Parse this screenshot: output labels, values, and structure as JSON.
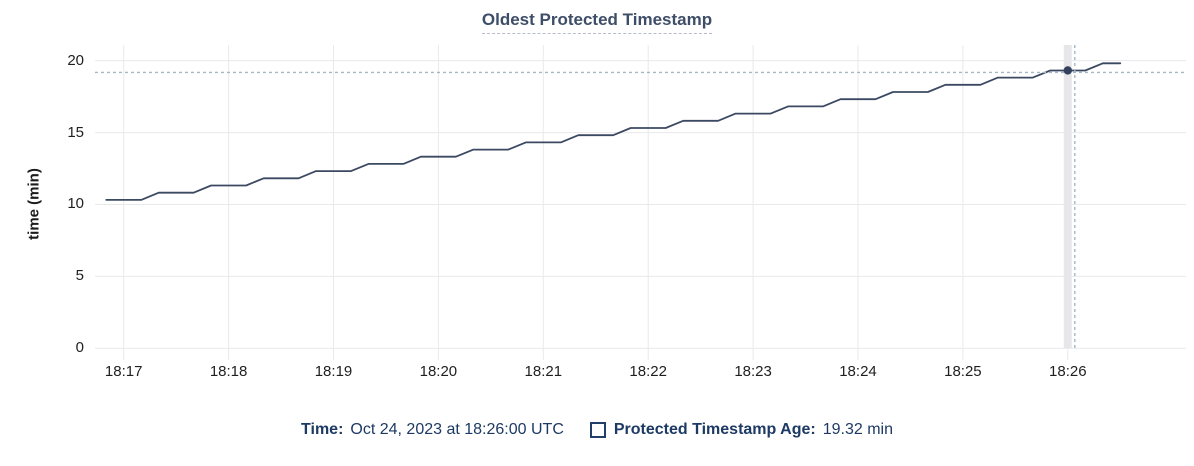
{
  "title": "Oldest Protected Timestamp",
  "legend": {
    "time_label": "Time:",
    "time_value": "Oct 24, 2023 at 18:26:00 UTC",
    "series_label": "Protected Timestamp Age:",
    "series_value": "19.32 min"
  },
  "colors": {
    "line": "#3b4962",
    "dot": "#33415c",
    "grid": "#e9e9eb",
    "highlight_band": "#e7e7e9",
    "crosshair": "#a4b7c4",
    "title_text": "#3e4d68",
    "legend_text": "#1d3a64",
    "tick_text": "#1f1f1f",
    "checkbox_border": "#223e6b"
  },
  "chart_data": {
    "type": "line",
    "title": "Oldest Protected Timestamp",
    "xlabel": "",
    "ylabel": "time (min)",
    "ylim": [
      0,
      20
    ],
    "y_ticks": [
      0,
      5,
      10,
      15,
      20
    ],
    "x_ticks": [
      "18:17",
      "18:18",
      "18:19",
      "18:20",
      "18:21",
      "18:22",
      "18:23",
      "18:24",
      "18:25",
      "18:26"
    ],
    "grid": true,
    "legend_position": "bottom",
    "series": [
      {
        "name": "Protected Timestamp Age",
        "points": [
          {
            "t": "18:16:50",
            "v": 10.32
          },
          {
            "t": "18:17:10",
            "v": 10.32
          },
          {
            "t": "18:17:20",
            "v": 10.82
          },
          {
            "t": "18:17:40",
            "v": 10.82
          },
          {
            "t": "18:17:50",
            "v": 11.32
          },
          {
            "t": "18:18:10",
            "v": 11.32
          },
          {
            "t": "18:18:20",
            "v": 11.82
          },
          {
            "t": "18:18:40",
            "v": 11.82
          },
          {
            "t": "18:18:50",
            "v": 12.32
          },
          {
            "t": "18:19:10",
            "v": 12.32
          },
          {
            "t": "18:19:20",
            "v": 12.82
          },
          {
            "t": "18:19:40",
            "v": 12.82
          },
          {
            "t": "18:19:50",
            "v": 13.32
          },
          {
            "t": "18:20:10",
            "v": 13.32
          },
          {
            "t": "18:20:20",
            "v": 13.82
          },
          {
            "t": "18:20:40",
            "v": 13.82
          },
          {
            "t": "18:20:50",
            "v": 14.32
          },
          {
            "t": "18:21:10",
            "v": 14.32
          },
          {
            "t": "18:21:20",
            "v": 14.82
          },
          {
            "t": "18:21:40",
            "v": 14.82
          },
          {
            "t": "18:21:50",
            "v": 15.32
          },
          {
            "t": "18:22:10",
            "v": 15.32
          },
          {
            "t": "18:22:20",
            "v": 15.82
          },
          {
            "t": "18:22:40",
            "v": 15.82
          },
          {
            "t": "18:22:50",
            "v": 16.32
          },
          {
            "t": "18:23:10",
            "v": 16.32
          },
          {
            "t": "18:23:20",
            "v": 16.82
          },
          {
            "t": "18:23:40",
            "v": 16.82
          },
          {
            "t": "18:23:50",
            "v": 17.32
          },
          {
            "t": "18:24:10",
            "v": 17.32
          },
          {
            "t": "18:24:20",
            "v": 17.82
          },
          {
            "t": "18:24:40",
            "v": 17.82
          },
          {
            "t": "18:24:50",
            "v": 18.32
          },
          {
            "t": "18:25:10",
            "v": 18.32
          },
          {
            "t": "18:25:20",
            "v": 18.82
          },
          {
            "t": "18:25:40",
            "v": 18.82
          },
          {
            "t": "18:25:50",
            "v": 19.32
          },
          {
            "t": "18:26:10",
            "v": 19.32
          },
          {
            "t": "18:26:20",
            "v": 19.82
          },
          {
            "t": "18:26:30",
            "v": 19.82
          }
        ]
      }
    ],
    "hover": {
      "time": "18:26:00",
      "value": 19.32,
      "time_label": "Oct 24, 2023 at 18:26:00 UTC",
      "value_label": "19.32 min"
    }
  }
}
